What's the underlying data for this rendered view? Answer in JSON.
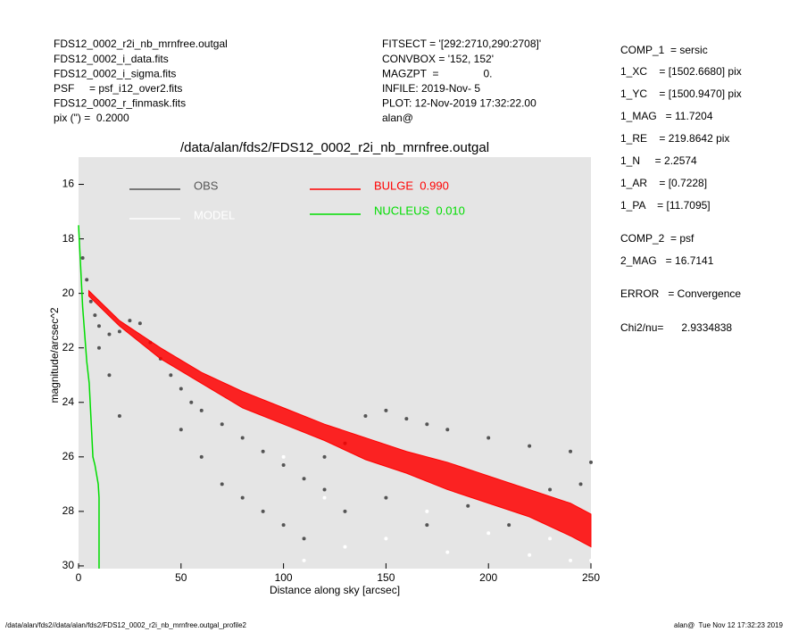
{
  "header": {
    "left": [
      "FDS12_0002_r2i_nb_mrnfree.outgal",
      "FDS12_0002_i_data.fits",
      "FDS12_0002_i_sigma.fits",
      "PSF     = psf_i12_over2.fits",
      "FDS12_0002_r_finmask.fits",
      "pix (\") =  0.2000"
    ],
    "middle": [
      "FITSECT = '[292:2710,290:2708]'",
      "CONVBOX = '152, 152'",
      "MAGZPT  =               0.",
      "INFILE: 2019-Nov- 5",
      "PLOT: 12-Nov-2019 17:32:22.00",
      "alan@"
    ],
    "right": [
      "COMP_1  = sersic",
      "1_XC    = [1502.6680] pix",
      "1_YC    = [1500.9470] pix",
      "1_MAG   = 11.7204",
      "1_RE    = 219.8642 pix",
      "1_N     = 2.2574",
      "1_AR    = [0.7228]",
      "1_PA    = [11.7095]",
      "COMP_2  = psf",
      "2_MAG   = 16.7141",
      "ERROR   = Convergence",
      "Chi2/nu=      2.9334838"
    ]
  },
  "footer": {
    "left": "/data/alan/fds2//data/alan/fds2/FDS12_0002_r2i_nb_mrnfree.outgal_profile2",
    "right": "alan@  Tue Nov 12 17:32:23 2019"
  },
  "chart_data": {
    "type": "scatter",
    "title": "/data/alan/fds2/FDS12_0002_r2i_nb_mrnfree.outgal",
    "xlabel": "Distance along sky [arcsec]",
    "ylabel": "magnitude/arcsec^2",
    "xlim": [
      0,
      250
    ],
    "xticks": [
      0,
      50,
      100,
      150,
      200,
      250
    ],
    "ylim": [
      30.1,
      15
    ],
    "yticks": [
      16,
      18,
      20,
      22,
      24,
      26,
      28,
      30
    ],
    "series": [
      {
        "name": "OBS",
        "color": "#555555",
        "marker": "dots",
        "x": [
          2,
          4,
          6,
          8,
          10,
          15,
          20,
          25,
          30,
          35,
          40,
          45,
          50,
          55,
          60,
          70,
          80,
          90,
          100,
          110,
          120,
          50,
          60,
          70,
          80,
          90,
          100,
          110,
          120,
          130,
          140,
          150,
          160,
          170,
          180,
          200,
          220,
          240,
          250,
          130,
          150,
          170,
          190,
          210,
          230,
          245,
          15,
          20,
          10
        ],
        "values": [
          18.7,
          19.5,
          20.3,
          20.8,
          21.2,
          21.5,
          21.4,
          21.0,
          21.1,
          21.8,
          22.4,
          23.0,
          23.5,
          24.0,
          24.3,
          24.8,
          25.3,
          25.8,
          26.3,
          26.8,
          27.2,
          25,
          26,
          27,
          27.5,
          28,
          28.5,
          29,
          26,
          25.5,
          24.5,
          24.3,
          24.6,
          24.8,
          25.0,
          25.3,
          25.6,
          25.8,
          26.2,
          28,
          27.5,
          28.5,
          27.8,
          28.5,
          27.2,
          27,
          23,
          24.5,
          22
        ]
      },
      {
        "name": "MODEL",
        "color": "#ffffff",
        "marker": "dots",
        "x": [
          150,
          180,
          200,
          220,
          240,
          170,
          230,
          250,
          130,
          110,
          100,
          120
        ],
        "values": [
          29,
          29.5,
          28.8,
          29.6,
          29.8,
          28,
          29,
          29.8,
          29.3,
          29.8,
          26,
          27.5
        ]
      },
      {
        "name": "BULGE  0.990",
        "color": "#ff0000",
        "marker": "band",
        "x": [
          5,
          20,
          40,
          60,
          80,
          100,
          120,
          140,
          160,
          180,
          200,
          220,
          240,
          250,
          250,
          240,
          220,
          200,
          180,
          160,
          140,
          120,
          100,
          80,
          60,
          40,
          20,
          5
        ],
        "values": [
          19.9,
          21.0,
          22.0,
          22.9,
          23.6,
          24.2,
          24.8,
          25.3,
          25.8,
          26.2,
          26.7,
          27.2,
          27.7,
          28.1,
          29.3,
          28.9,
          28.2,
          27.7,
          27.2,
          26.6,
          26.1,
          25.4,
          24.8,
          24.2,
          23.3,
          22.4,
          21.2,
          20.1
        ]
      },
      {
        "name": "NUCLEUS  0.010",
        "color": "#00dd00",
        "marker": "line",
        "x": [
          0,
          1,
          2,
          3,
          4,
          5.2,
          6,
          7,
          8,
          9.6,
          10,
          10
        ],
        "values": [
          17.5,
          19,
          20.5,
          21.5,
          22.5,
          23.3,
          24.5,
          26,
          26.3,
          27,
          27.5,
          30.1
        ]
      }
    ]
  }
}
